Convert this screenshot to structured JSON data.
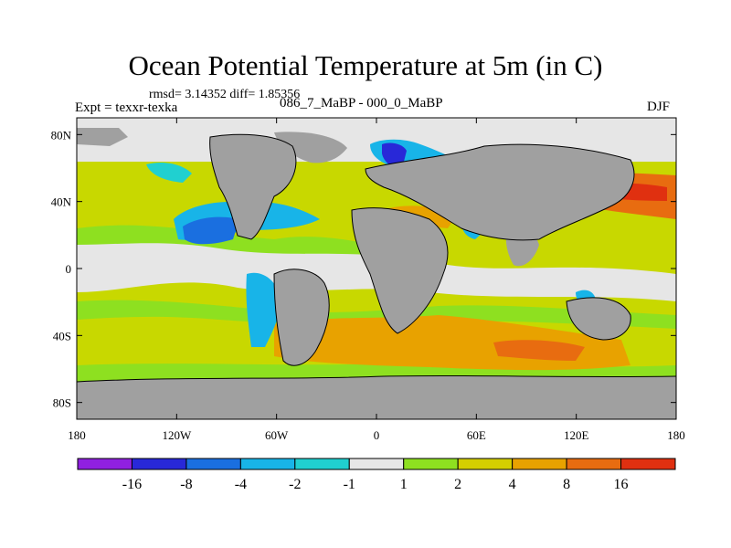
{
  "chart_data": {
    "type": "heatmap",
    "title": "Ocean Potential Temperature at 5m (in C)",
    "stats_text": "rmsd= 3.14352 diff= 1.85356",
    "left_label": "Expt = texxr-texka",
    "center_label": "086_7_MaBP - 000_0_MaBP",
    "right_label": "DJF",
    "x_axis": {
      "range": [
        -180,
        180
      ],
      "ticks": [
        -180,
        -120,
        -60,
        0,
        60,
        120,
        180
      ],
      "tick_labels": [
        "180",
        "120W",
        "60W",
        "0",
        "60E",
        "120E",
        "180"
      ]
    },
    "y_axis": {
      "range": [
        -90,
        90
      ],
      "ticks": [
        80,
        40,
        0,
        -40,
        -80
      ],
      "tick_labels": [
        "80N",
        "40N",
        "0",
        "40S",
        "80S"
      ]
    },
    "colorbar": {
      "levels": [
        -16,
        -8,
        -4,
        -2,
        -1,
        1,
        2,
        4,
        8,
        16
      ],
      "labels": [
        "-16",
        "-8",
        "-4",
        "-2",
        "-1",
        "1",
        "2",
        "4",
        "8",
        "16"
      ],
      "colors": [
        "#9020e0",
        "#2828d8",
        "#1a6fe0",
        "#18b4e8",
        "#20d0d0",
        "#e6e6e6",
        "#8ee020",
        "#d4cf00",
        "#e8a200",
        "#e86c10",
        "#e03010"
      ]
    },
    "land_color": "#a0a0a0"
  }
}
